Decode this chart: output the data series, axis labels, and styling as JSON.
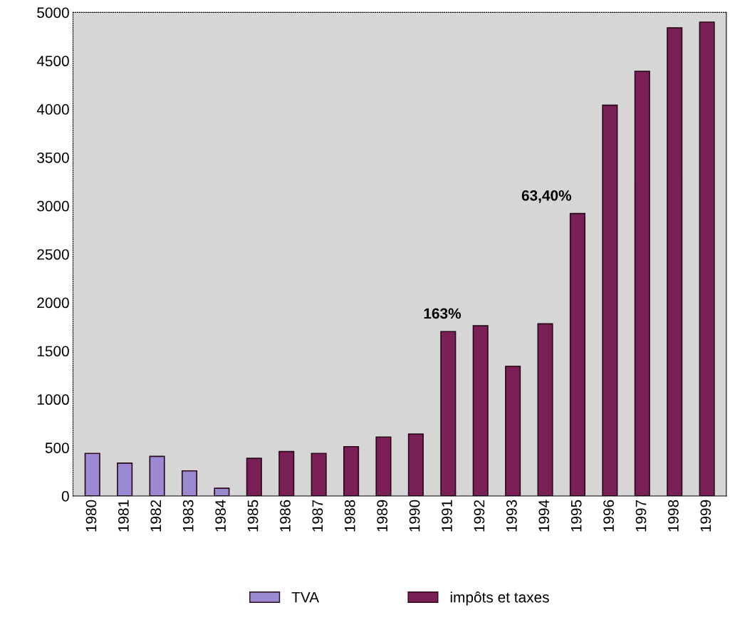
{
  "chart_data": {
    "type": "bar",
    "categories": [
      "1980",
      "1981",
      "1982",
      "1983",
      "1984",
      "1985",
      "1986",
      "1987",
      "1988",
      "1989",
      "1990",
      "1991",
      "1992",
      "1993",
      "1994",
      "1995",
      "1996",
      "1997",
      "1998",
      "1999"
    ],
    "series": [
      {
        "name": "TVA",
        "color": "#9b8ad2",
        "values": [
          440,
          340,
          410,
          260,
          80,
          null,
          null,
          null,
          null,
          null,
          null,
          null,
          null,
          null,
          null,
          null,
          null,
          null,
          null,
          null
        ]
      },
      {
        "name": "impôts et taxes",
        "color": "#7b1f57",
        "values": [
          null,
          null,
          null,
          null,
          null,
          390,
          460,
          440,
          510,
          610,
          640,
          1700,
          1760,
          1340,
          1780,
          2920,
          4040,
          4390,
          4840,
          4900
        ]
      }
    ],
    "ylim": [
      0,
      5000
    ],
    "yticks": [
      0,
      500,
      1000,
      1500,
      2000,
      2500,
      3000,
      3500,
      4000,
      4500,
      5000
    ],
    "annotations": [
      {
        "text": "163%",
        "x": "1991",
        "y": 1700
      },
      {
        "text": "63,40%",
        "x": "1995",
        "y": 2920
      }
    ],
    "grid": false,
    "legend": "bottom"
  }
}
